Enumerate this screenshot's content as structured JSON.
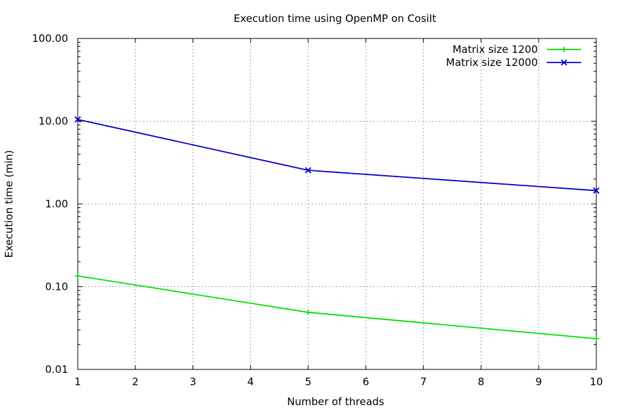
{
  "chart_data": {
    "type": "line",
    "title": "Execution time using OpenMP on CosiIt",
    "xlabel": "Number of threads",
    "ylabel": "Execution time (min)",
    "xlim": [
      1,
      10
    ],
    "ylim": [
      0.01,
      100
    ],
    "yscale": "log",
    "grid": true,
    "legend_position": "top-right",
    "x_ticks": [
      1,
      2,
      3,
      4,
      5,
      6,
      7,
      8,
      9,
      10
    ],
    "x_tick_labels": [
      "1",
      "2",
      "3",
      "4",
      "5",
      "6",
      "7",
      "8",
      "9",
      "10"
    ],
    "y_ticks": [
      0.01,
      0.1,
      1,
      10,
      100
    ],
    "y_tick_labels": [
      "0.01",
      "0.10",
      "1.00",
      "10.00",
      "100.00"
    ],
    "series": [
      {
        "name": "Matrix size 1200",
        "color": "#00e000",
        "marker": "plus",
        "x": [
          1,
          5,
          10
        ],
        "y": [
          0.135,
          0.049,
          0.0235
        ]
      },
      {
        "name": "Matrix size 12000",
        "color": "#0000c8",
        "marker": "cross",
        "x": [
          1,
          5,
          10
        ],
        "y": [
          10.5,
          2.55,
          1.45
        ]
      }
    ]
  }
}
